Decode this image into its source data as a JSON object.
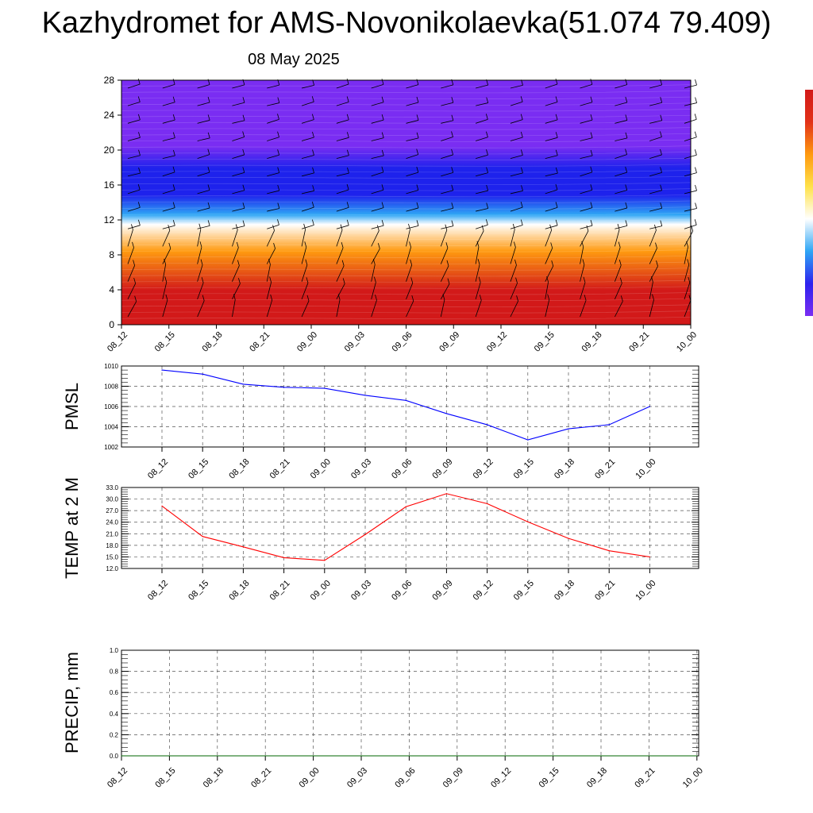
{
  "title": "Kazhydromet for AMS-Novonikolaevka(51.074 79.409)",
  "date": "08 May 2025",
  "chart_data": [
    {
      "type": "heatmap",
      "ylim": [
        0,
        28
      ],
      "yticks": [
        "0",
        "4",
        "8",
        "12",
        "16",
        "20",
        "24",
        "28"
      ],
      "x": [
        "08_12",
        "08_15",
        "08_18",
        "08_21",
        "09_00",
        "09_03",
        "09_06",
        "09_09",
        "09_12",
        "09_15",
        "09_18",
        "09_21",
        "10_00"
      ],
      "colors": {
        "lowest_level": "#d21919",
        "warm": "#ff9a10",
        "transition": "#ffffff",
        "cool": "#2fa6f5",
        "upper": "#1e22ec",
        "top": "#7a2df2"
      },
      "colorbar": [
        "#7a2df2",
        "#2d22ee",
        "#2fa6f5",
        "#ffffff",
        "#ffe24a",
        "#ff9a10",
        "#e23219",
        "#d21919"
      ]
    },
    {
      "type": "line",
      "ylabel": "PMSL",
      "x": [
        "08_12",
        "08_15",
        "08_18",
        "08_21",
        "09_00",
        "09_03",
        "09_06",
        "09_09",
        "09_12",
        "09_15",
        "09_18",
        "09_21",
        "10_00"
      ],
      "series": [
        {
          "values": [
            1009.6,
            1009.2,
            1008.2,
            1007.9,
            1007.8,
            1007.1,
            1006.6,
            1005.3,
            1004.2,
            1002.7,
            1003.8,
            1004.2,
            1006.0
          ],
          "color": "#0000ff"
        }
      ],
      "ylim": [
        1002,
        1010
      ],
      "yticks": [
        "1002",
        "1004",
        "1006",
        "1008",
        "1010"
      ]
    },
    {
      "type": "line",
      "ylabel": "TEMP at 2 M",
      "x": [
        "08_12",
        "08_15",
        "08_18",
        "08_21",
        "09_00",
        "09_03",
        "09_06",
        "09_09",
        "09_12",
        "09_15",
        "09_18",
        "09_21",
        "10_00"
      ],
      "series": [
        {
          "values": [
            28.2,
            20.3,
            17.6,
            14.8,
            14.1,
            20.8,
            28.0,
            31.4,
            28.8,
            24.1,
            19.8,
            16.6,
            15.0
          ],
          "color": "#ff0000"
        }
      ],
      "ylim": [
        12,
        33
      ],
      "yticks": [
        "12.0",
        "15.0",
        "18.0",
        "21.0",
        "24.0",
        "27.0",
        "30.0",
        "33.0"
      ]
    },
    {
      "type": "line",
      "ylabel": "PRECIP, mm",
      "x": [
        "08_12",
        "08_15",
        "08_18",
        "08_21",
        "09_00",
        "09_03",
        "09_06",
        "09_09",
        "09_12",
        "09_15",
        "09_18",
        "09_21",
        "10_00"
      ],
      "series": [
        {
          "values": [
            0,
            0,
            0,
            0,
            0,
            0,
            0,
            0,
            0,
            0,
            0,
            0,
            0
          ],
          "color": "#006400"
        }
      ],
      "ylim": [
        0,
        1
      ],
      "yticks": [
        "0.0",
        "0.2",
        "0.4",
        "0.6",
        "0.8",
        "1.0"
      ]
    }
  ]
}
